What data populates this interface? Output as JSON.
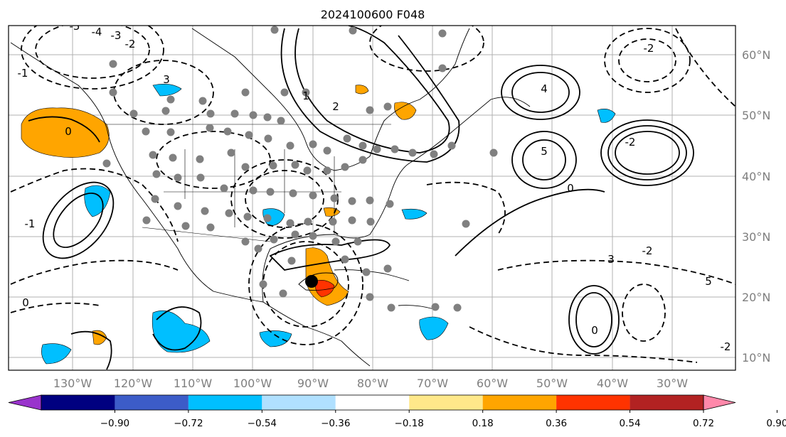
{
  "title": "2024100600 F048",
  "map": {
    "lon_labels": [
      "130°W",
      "120°W",
      "110°W",
      "100°W",
      "90°W",
      "80°W",
      "70°W",
      "60°W",
      "50°W",
      "40°W",
      "30°W"
    ],
    "lat_labels": [
      "60°N",
      "50°N",
      "40°N",
      "30°N",
      "20°N",
      "10°N"
    ],
    "contour_labels": [
      "-5",
      "-4",
      "-3",
      "-2",
      "-1",
      "0",
      "1",
      "2",
      "3",
      "4",
      "5",
      "-2",
      "-2",
      "0",
      "3",
      "-2",
      "-1",
      "0",
      "0",
      "5",
      "-2"
    ],
    "colors": {
      "ocean": "#ffffff",
      "land_line": "#000000",
      "grid": "#b0b0b0",
      "dots": "#808080",
      "storm_center": "#000000"
    }
  },
  "colorbar": {
    "ticks": [
      "−0.90",
      "−0.72",
      "−0.54",
      "−0.36",
      "−0.18",
      "0.18",
      "0.36",
      "0.54",
      "0.72",
      "0.90"
    ],
    "colors": [
      "#9933cc",
      "#000080",
      "#3c5cc8",
      "#00bfff",
      "#b0e0ff",
      "#ffffff",
      "#ffe88a",
      "#ffa500",
      "#ff3300",
      "#b22222",
      "#ff88aa"
    ]
  }
}
